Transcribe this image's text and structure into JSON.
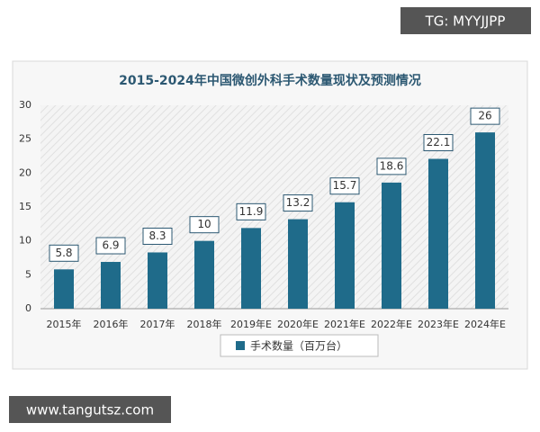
{
  "chart_data": {
    "type": "bar",
    "title": "2015-2024年中国微创外科手术数量现状及预测情况",
    "categories": [
      "2015年",
      "2016年",
      "2017年",
      "2018年",
      "2019年E",
      "2020年E",
      "2021年E",
      "2022年E",
      "2023年E",
      "2024年E"
    ],
    "series": [
      {
        "name": "手术数量（百万台）",
        "color": "#1f6b8a",
        "values": [
          5.8,
          6.9,
          8.3,
          10,
          11.9,
          13.2,
          15.7,
          18.6,
          22.1,
          26
        ]
      }
    ],
    "ylim": [
      0,
      30
    ],
    "yticks": [
      0,
      5,
      10,
      15,
      20,
      25,
      30
    ],
    "grid": false,
    "legend": "bottom"
  },
  "watermarks": {
    "top": "TG: MYYJJPP",
    "bottom": "www.tangutsz.com"
  }
}
